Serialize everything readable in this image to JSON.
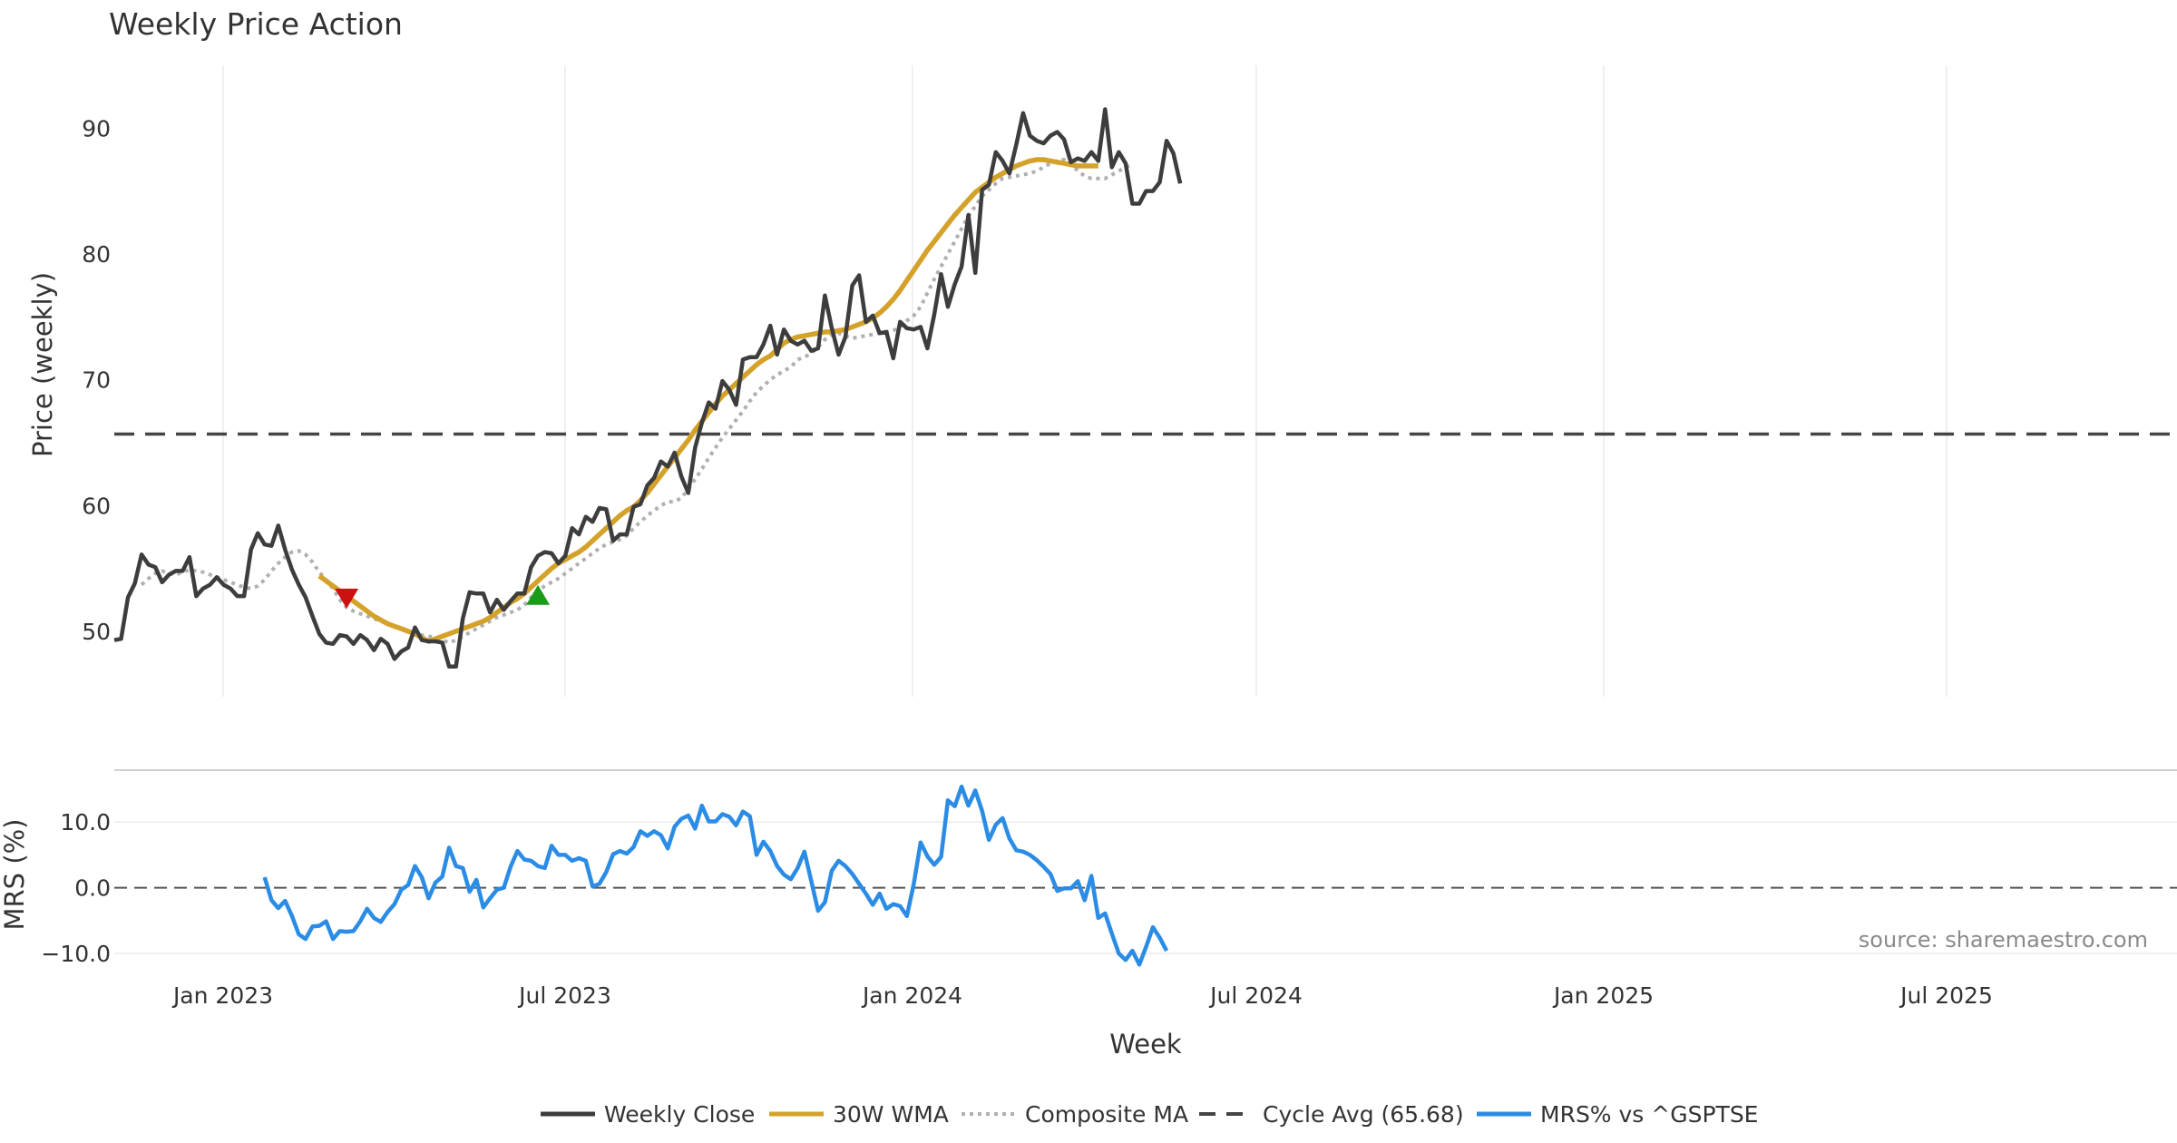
{
  "chart_data": {
    "type": "line",
    "title": "Weekly Price Action",
    "xlabel": "Week",
    "source_note": "source: sharemaestro.com",
    "x_ticks": [
      "Jan 2023",
      "Jul 2023",
      "Jan 2024",
      "Jul 2024",
      "Jan 2025",
      "Jul 2025"
    ],
    "grid": true,
    "legend_position": "bottom",
    "colors": {
      "weekly_close": "#3d3d3d",
      "wma": "#d4a22a",
      "composite": "#b0b0b0",
      "cycle": "#444444",
      "mrs": "#2b8ce6",
      "sell_marker": "#cc1111",
      "buy_marker": "#1a9c1a"
    },
    "price_panel": {
      "ylabel": "Price (weekly)",
      "ylim": [
        44.8,
        95
      ],
      "yticks": [
        "50",
        "60",
        "70",
        "80",
        "90"
      ],
      "yticks_values": [
        50,
        60,
        70,
        80,
        90
      ],
      "cycle_avg": 65.68,
      "start_date": "2022-11-06",
      "series": [
        {
          "name": "Weekly Close",
          "values": [
            49.3,
            49.4,
            52.7,
            53.8,
            56.1,
            55.3,
            55.1,
            53.9,
            54.5,
            54.8,
            54.8,
            55.9,
            52.8,
            53.4,
            53.7,
            54.3,
            53.7,
            53.4,
            52.8,
            52.8,
            56.5,
            57.8,
            56.9,
            56.8,
            58.4,
            56.5,
            54.9,
            53.7,
            52.7,
            51.2,
            49.8,
            49.1,
            49.0,
            49.7,
            49.6,
            49.0,
            49.7,
            49.3,
            48.5,
            49.4,
            49.0,
            47.8,
            48.4,
            48.7,
            50.3,
            49.3,
            49.2,
            49.2,
            49.1,
            47.2,
            47.2,
            51.0,
            53.1,
            53.0,
            53.0,
            51.5,
            52.5,
            51.7,
            52.4,
            53.0,
            53.0,
            55.1,
            56.0,
            56.3,
            56.2,
            55.4,
            56.0,
            58.2,
            57.7,
            59.1,
            58.7,
            59.8,
            59.7,
            57.2,
            57.7,
            57.7,
            59.9,
            60.1,
            61.6,
            62.2,
            63.5,
            63.1,
            64.2,
            62.3,
            61.0,
            64.6,
            66.6,
            68.2,
            67.7,
            69.9,
            69.2,
            68.0,
            71.6,
            71.8,
            71.8,
            72.8,
            74.3,
            72.0,
            74.0,
            73.1,
            72.8,
            73.1,
            72.3,
            72.5,
            76.7,
            74.1,
            72.0,
            73.4,
            77.5,
            78.3,
            74.6,
            75.1,
            73.7,
            73.8,
            71.7,
            74.6,
            74.1,
            74.0,
            74.2,
            72.5,
            75.2,
            78.4,
            75.8,
            77.6,
            79.0,
            83.1,
            78.5,
            85.1,
            85.5,
            88.1,
            87.4,
            86.4,
            88.7,
            91.2,
            89.4,
            89.0,
            88.8,
            89.4,
            89.7,
            89.1,
            87.3,
            87.6,
            87.4,
            88.1,
            87.4,
            91.5,
            86.9,
            88.1,
            87.2,
            84.0,
            84.0,
            85.0,
            85.0,
            85.7,
            89.0,
            88.0,
            85.6
          ]
        },
        {
          "name": "30W WMA",
          "start_index": 30,
          "values": [
            54.4,
            54.0,
            53.6,
            53.2,
            52.8,
            52.4,
            52.0,
            51.6,
            51.2,
            50.9,
            50.6,
            50.4,
            50.2,
            50.0,
            49.8,
            49.5,
            49.2,
            49.4,
            49.6,
            49.8,
            50.0,
            50.2,
            50.4,
            50.6,
            50.8,
            51.1,
            51.5,
            51.9,
            52.3,
            52.6,
            53.0,
            53.5,
            54.0,
            54.5,
            55.0,
            55.4,
            55.7,
            56.0,
            56.3,
            56.7,
            57.2,
            57.7,
            58.2,
            58.7,
            59.2,
            59.6,
            59.9,
            60.4,
            61.0,
            61.7,
            62.4,
            63.1,
            63.8,
            64.5,
            65.2,
            66.0,
            66.7,
            67.4,
            68.1,
            68.7,
            69.2,
            69.7,
            70.2,
            70.7,
            71.2,
            71.6,
            71.9,
            72.4,
            72.9,
            73.2,
            73.4,
            73.5,
            73.6,
            73.7,
            73.8,
            73.8,
            73.9,
            74.0,
            74.2,
            74.4,
            74.6,
            74.9,
            75.3,
            75.8,
            76.4,
            77.1,
            77.9,
            78.7,
            79.5,
            80.3,
            81.0,
            81.7,
            82.4,
            83.1,
            83.7,
            84.3,
            84.9,
            85.3,
            85.7,
            86.1,
            86.4,
            86.7,
            87.0,
            87.2,
            87.4,
            87.5,
            87.5,
            87.4,
            87.3,
            87.2,
            87.1,
            87.0,
            87.0,
            87.0,
            87.0
          ]
        },
        {
          "name": "Composite MA",
          "start_index": 4,
          "values": [
            53.7,
            54.2,
            54.6,
            54.8,
            54.6,
            54.5,
            54.7,
            54.9,
            54.8,
            54.7,
            54.5,
            54.3,
            54.1,
            53.9,
            53.7,
            53.5,
            53.4,
            53.6,
            54.1,
            54.8,
            55.4,
            55.9,
            56.3,
            56.4,
            56.1,
            55.5,
            54.7,
            54.1,
            53.4,
            52.5,
            51.9,
            51.6,
            51.4,
            51.2,
            51.0,
            50.8,
            50.6,
            50.4,
            50.2,
            50.0,
            49.9,
            49.7,
            49.6,
            49.5,
            49.3,
            49.1,
            49.3,
            49.6,
            49.9,
            50.2,
            50.5,
            50.8,
            51.1,
            51.3,
            51.5,
            51.7,
            52.1,
            52.7,
            53.2,
            53.6,
            53.9,
            54.2,
            54.6,
            55.0,
            55.4,
            55.8,
            56.2,
            56.6,
            56.9,
            57.1,
            57.3,
            57.6,
            58.2,
            58.7,
            59.2,
            59.6,
            60.0,
            60.3,
            60.3,
            60.6,
            61.3,
            62.1,
            62.9,
            63.8,
            64.6,
            65.4,
            66.1,
            66.8,
            67.5,
            68.3,
            69.0,
            69.5,
            70.0,
            70.4,
            70.7,
            71.0,
            71.6,
            71.8,
            72.1,
            72.6,
            73.2,
            73.6,
            73.7,
            73.5,
            73.3,
            73.4,
            73.5,
            73.6,
            73.7,
            73.8,
            73.9,
            74.2,
            74.7,
            75.1,
            75.8,
            76.9,
            78.0,
            79.0,
            80.0,
            81.0,
            82.0,
            83.0,
            83.8,
            84.6,
            85.1,
            85.6,
            86.0,
            86.1,
            86.2,
            86.3,
            86.4,
            86.6,
            86.9,
            87.2,
            87.4,
            87.5,
            87.2,
            86.6,
            86.2,
            86.0,
            86.0,
            86.0,
            86.3,
            86.6,
            86.9,
            87.1
          ]
        }
      ],
      "markers": [
        {
          "type": "sell",
          "x_index": 34,
          "value": 52.6
        },
        {
          "type": "buy",
          "x_index": 62,
          "value": 52.9
        }
      ]
    },
    "mrs_panel": {
      "ylabel": "MRS (%)",
      "ylim": [
        -14,
        15
      ],
      "yticks": [
        "10.0",
        "0.0",
        "−10.0"
      ],
      "yticks_values": [
        10,
        0,
        -10
      ],
      "series": [
        {
          "name": "MRS% vs ^GSPTSE",
          "start_index": 22,
          "values": [
            1.6,
            -1.9,
            -3.1,
            -2.0,
            -4.3,
            -7.1,
            -7.8,
            -5.9,
            -5.8,
            -5.1,
            -7.8,
            -6.6,
            -6.7,
            -6.6,
            -5.1,
            -3.2,
            -4.6,
            -5.2,
            -3.7,
            -2.5,
            -0.3,
            0.4,
            3.3,
            1.6,
            -1.6,
            0.8,
            1.7,
            6.1,
            3.3,
            3.0,
            -0.6,
            1.2,
            -3.0,
            -1.6,
            -0.3,
            0.0,
            3.2,
            5.6,
            4.3,
            4.1,
            3.3,
            3.0,
            6.4,
            5.0,
            5.0,
            4.1,
            4.5,
            4.1,
            0.2,
            0.6,
            2.4,
            5.1,
            5.6,
            5.2,
            6.2,
            8.6,
            7.9,
            8.6,
            8.0,
            6.0,
            9.3,
            10.5,
            11.0,
            9.0,
            12.5,
            10.1,
            10.1,
            11.2,
            10.8,
            9.5,
            11.6,
            10.9,
            5.0,
            7.0,
            5.6,
            3.3,
            2.0,
            1.3,
            3.0,
            5.5,
            1.0,
            -3.5,
            -2.2,
            2.6,
            4.1,
            3.3,
            2.1,
            0.6,
            -0.9,
            -2.6,
            -0.9,
            -3.2,
            -2.5,
            -2.8,
            -4.3,
            0.6,
            6.9,
            4.8,
            3.5,
            4.7,
            13.3,
            12.4,
            15.4,
            12.5,
            14.8,
            11.7,
            7.3,
            9.6,
            10.6,
            7.5,
            5.7,
            5.5,
            5.0,
            4.2,
            3.2,
            2.1,
            -0.5,
            -0.1,
            -0.1,
            1.0,
            -1.9,
            1.8,
            -4.6,
            -3.9,
            -7.0,
            -10.0,
            -11.0,
            -9.6,
            -11.7,
            -9.0,
            -6.0,
            -7.6,
            -9.6
          ]
        }
      ]
    },
    "legend": [
      {
        "label": "Weekly Close",
        "style": "solid",
        "color_key": "weekly_close"
      },
      {
        "label": "30W WMA",
        "style": "solid",
        "color_key": "wma"
      },
      {
        "label": "Composite MA",
        "style": "dotted",
        "color_key": "composite"
      },
      {
        "label": "Cycle Avg (65.68)",
        "style": "dashed",
        "color_key": "cycle"
      },
      {
        "label": "MRS% vs ^GSPTSE",
        "style": "solid",
        "color_key": "mrs"
      }
    ]
  }
}
